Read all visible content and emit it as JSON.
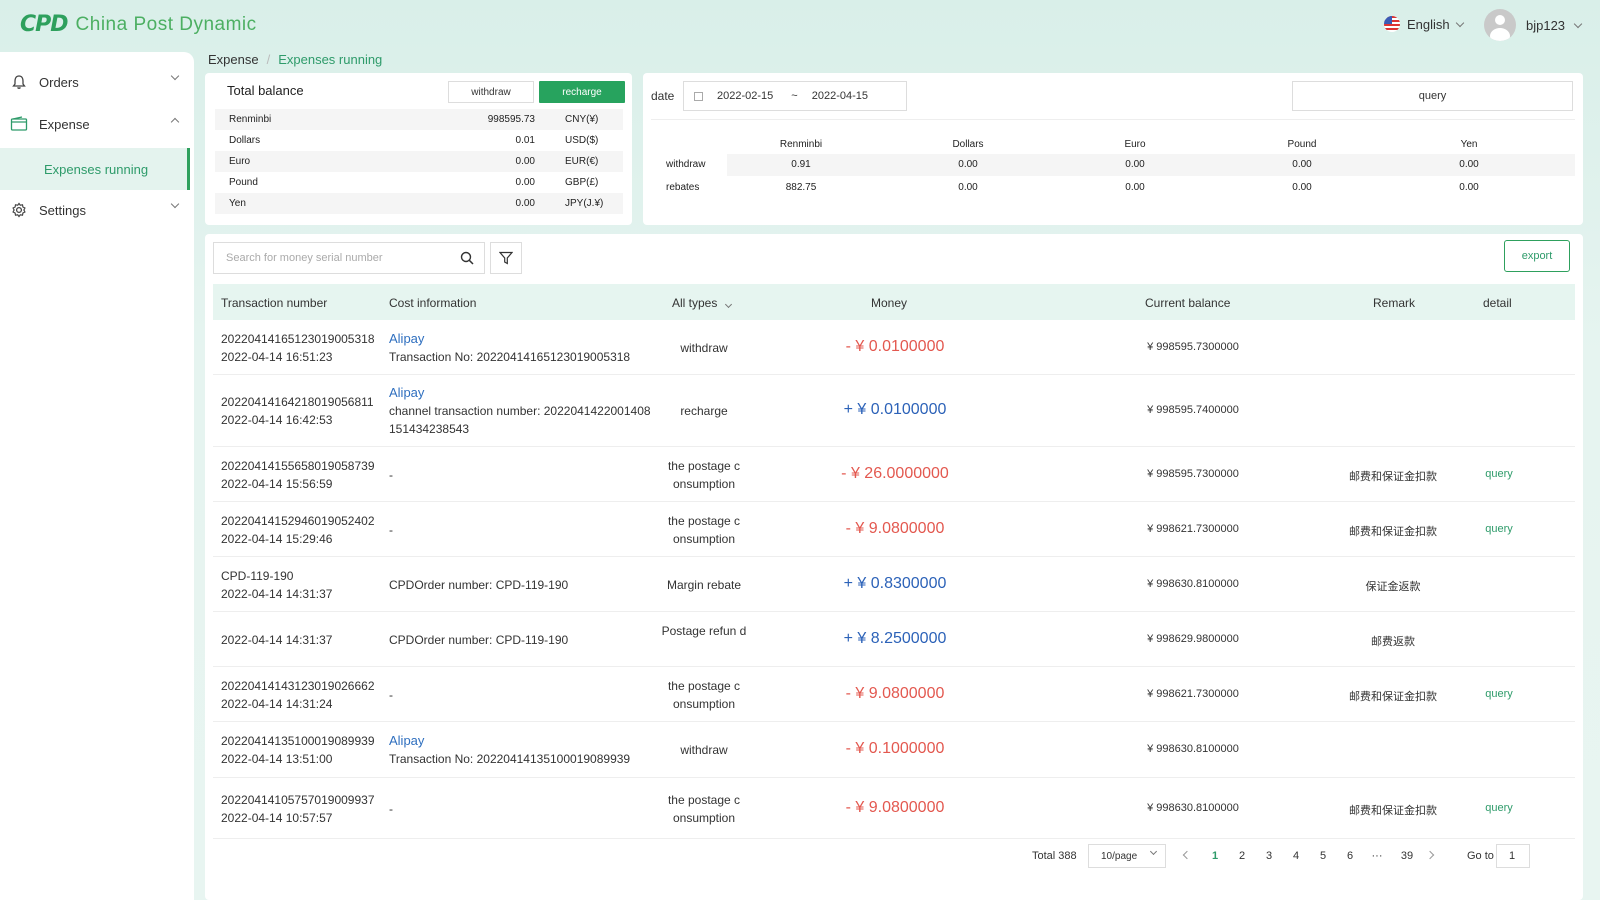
{
  "header": {
    "logo_mark": "CPD",
    "logo_text": "China Post Dynamic",
    "language": "English",
    "username": "bjp123"
  },
  "sidebar": {
    "items": [
      {
        "label": "Orders",
        "icon": "bell-icon"
      },
      {
        "label": "Expense",
        "icon": "wallet-icon"
      },
      {
        "label": "Settings",
        "icon": "gear-icon"
      }
    ],
    "active_sub": "Expenses running"
  },
  "breadcrumb": {
    "parent": "Expense",
    "separator": "/",
    "current": "Expenses running"
  },
  "balance": {
    "title": "Total balance",
    "withdraw_label": "withdraw",
    "recharge_label": "recharge",
    "rows": [
      {
        "name": "Renminbi",
        "value": "998595.73",
        "currency": "CNY(¥)"
      },
      {
        "name": "Dollars",
        "value": "0.01",
        "currency": "USD($)"
      },
      {
        "name": "Euro",
        "value": "0.00",
        "currency": "EUR(€)"
      },
      {
        "name": "Pound",
        "value": "0.00",
        "currency": "GBP(£)"
      },
      {
        "name": "Yen",
        "value": "0.00",
        "currency": "JPY(J.¥)"
      }
    ]
  },
  "filter": {
    "date_label": "date",
    "start_date": "2022-02-15",
    "range_sep": "~",
    "end_date": "2022-04-15",
    "query_label": "query"
  },
  "summary": {
    "headers": [
      "Renminbi",
      "Dollars",
      "Euro",
      "Pound",
      "Yen"
    ],
    "rows": [
      {
        "label": "withdraw",
        "values": [
          "0.91",
          "0.00",
          "0.00",
          "0.00",
          "0.00"
        ]
      },
      {
        "label": "rebates",
        "values": [
          "882.75",
          "0.00",
          "0.00",
          "0.00",
          "0.00"
        ]
      }
    ]
  },
  "table": {
    "search_placeholder": "Search for money serial number",
    "export_label": "export",
    "headers": {
      "tx": "Transaction number",
      "cost": "Cost information",
      "type": "All types",
      "money": "Money",
      "balance": "Current balance",
      "remark": "Remark",
      "detail": "detail"
    },
    "rows": [
      {
        "tx": "20220414165123019005318",
        "time": "2022-04-14 16:51:23",
        "provider": "Alipay",
        "cost": "Transaction No: 20220414165123019005318",
        "type": "withdraw",
        "money": "- ¥ 0.0100000",
        "sign": "neg",
        "balance": "¥ 998595.7300000",
        "remark": "",
        "detail": ""
      },
      {
        "tx": "20220414164218019056811",
        "time": "2022-04-14 16:42:53",
        "provider": "Alipay",
        "cost": "channel transaction number: 2022041422001408 151434238543",
        "type": "recharge",
        "money": "+ ¥ 0.0100000",
        "sign": "pos",
        "balance": "¥ 998595.7400000",
        "remark": "",
        "detail": ""
      },
      {
        "tx": "20220414155658019058739",
        "time": "2022-04-14 15:56:59",
        "provider": "",
        "cost": "-",
        "type": "the postage c onsumption",
        "money": "- ¥ 26.0000000",
        "sign": "neg",
        "balance": "¥ 998595.7300000",
        "remark": "邮费和保证金扣款",
        "detail": "query"
      },
      {
        "tx": "20220414152946019052402",
        "time": "2022-04-14 15:29:46",
        "provider": "",
        "cost": "-",
        "type": "the postage c onsumption",
        "money": "- ¥ 9.0800000",
        "sign": "neg",
        "balance": "¥ 998621.7300000",
        "remark": "邮费和保证金扣款",
        "detail": "query"
      },
      {
        "tx": "CPD-119-190",
        "time": "2022-04-14 14:31:37",
        "provider": "",
        "cost": "CPDOrder number: CPD-119-190",
        "type": "Margin rebate",
        "money": "+ ¥ 0.8300000",
        "sign": "pos",
        "balance": "¥ 998630.8100000",
        "remark": "保证金返款",
        "detail": ""
      },
      {
        "tx": "",
        "time": "2022-04-14 14:31:37",
        "provider": "",
        "cost": "CPDOrder number: CPD-119-190",
        "type": "Postage refun d",
        "money": "+ ¥ 8.2500000",
        "sign": "pos",
        "balance": "¥ 998629.9800000",
        "remark": "邮费返款",
        "detail": ""
      },
      {
        "tx": "20220414143123019026662",
        "time": "2022-04-14 14:31:24",
        "provider": "",
        "cost": "-",
        "type": "the postage c onsumption",
        "money": "- ¥ 9.0800000",
        "sign": "neg",
        "balance": "¥ 998621.7300000",
        "remark": "邮费和保证金扣款",
        "detail": "query"
      },
      {
        "tx": "20220414135100019089939",
        "time": "2022-04-14 13:51:00",
        "provider": "Alipay",
        "cost": "Transaction No: 20220414135100019089939",
        "type": "withdraw",
        "money": "- ¥ 0.1000000",
        "sign": "neg",
        "balance": "¥ 998630.8100000",
        "remark": "",
        "detail": ""
      },
      {
        "tx": "20220414105757019009937",
        "time": "2022-04-14 10:57:57",
        "provider": "",
        "cost": "-",
        "type": "the postage c onsumption",
        "money": "- ¥ 9.0800000",
        "sign": "neg",
        "balance": "¥ 998630.8100000",
        "remark": "邮费和保证金扣款",
        "detail": "query"
      }
    ]
  },
  "pagination": {
    "total": "Total 388",
    "page_size": "10/page",
    "pages": [
      "1",
      "2",
      "3",
      "4",
      "5",
      "6",
      "···",
      "39"
    ],
    "current": "1",
    "goto_label": "Go to",
    "goto_value": "1"
  },
  "colors": {
    "brand": "#2ea05d",
    "negative": "#e3584f",
    "positive": "#2c62b8"
  }
}
